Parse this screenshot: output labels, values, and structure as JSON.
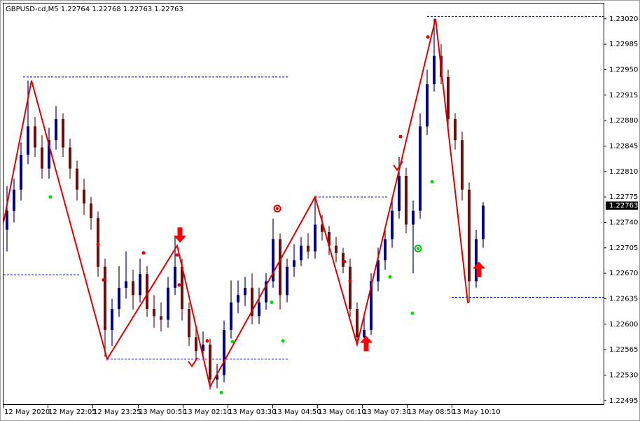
{
  "chart_data": {
    "type": "candlestick",
    "title": "GBPUSD-cd,M5  1.22764 1.22768 1.22763 1.22763",
    "up_color": "#000080",
    "down_color": "#6b0f0f",
    "open": [
      1.2273,
      1.22756,
      1.22785,
      1.22833,
      1.22872,
      1.22843,
      1.22814,
      1.22853,
      1.22882,
      1.22843,
      1.22814,
      1.22785,
      1.22766,
      1.22746,
      1.22679,
      1.22592,
      1.22621,
      1.2265,
      1.22659,
      1.2264,
      1.22669,
      1.22621,
      1.22611,
      1.22606,
      1.2265,
      1.22679,
      1.22621,
      1.22582,
      1.22563,
      1.22572,
      1.22524,
      1.2253,
      1.22592,
      1.2263,
      1.2264,
      1.2265,
      1.22611,
      1.2263,
      1.22659,
      1.22717,
      1.2264,
      1.22679,
      1.22688,
      1.22708,
      1.227,
      1.22737,
      1.22727,
      1.22708,
      1.22698,
      1.22679,
      1.22621,
      1.22582,
      1.22592,
      1.22659,
      1.22688,
      1.22717,
      1.22756,
      1.22804,
      1.22737,
      1.22756,
      1.22872,
      1.2293,
      1.22969,
      1.2294,
      1.22882,
      1.22853,
      1.22785,
      1.22659,
      1.22717
    ],
    "high": [
      1.2279,
      1.228,
      1.2285,
      1.22935,
      1.22885,
      1.2286,
      1.2287,
      1.229,
      1.2289,
      1.22855,
      1.22825,
      1.228,
      1.22775,
      1.22755,
      1.2269,
      1.22635,
      1.2268,
      1.227,
      1.22675,
      1.2269,
      1.2268,
      1.2264,
      1.2263,
      1.22665,
      1.2272,
      1.2269,
      1.2263,
      1.22595,
      1.2259,
      1.2258,
      1.22545,
      1.22605,
      1.2266,
      1.2266,
      1.22665,
      1.2267,
      1.2265,
      1.2267,
      1.22745,
      1.22725,
      1.2269,
      1.2271,
      1.2272,
      1.22725,
      1.22775,
      1.2275,
      1.22735,
      1.2272,
      1.22705,
      1.2269,
      1.2263,
      1.2261,
      1.2267,
      1.22705,
      1.2273,
      1.22775,
      1.2283,
      1.22815,
      1.2277,
      1.2289,
      1.2295,
      1.2302,
      1.22985,
      1.2295,
      1.2289,
      1.22865,
      1.22795,
      1.2273,
      1.22768
    ],
    "low": [
      1.227,
      1.2274,
      1.2277,
      1.2282,
      1.2283,
      1.228,
      1.228,
      1.2284,
      1.2283,
      1.228,
      1.2277,
      1.2275,
      1.2273,
      1.22665,
      1.22555,
      1.2257,
      1.2261,
      1.22635,
      1.2262,
      1.2263,
      1.2261,
      1.22595,
      1.2259,
      1.22595,
      1.2264,
      1.22605,
      1.2257,
      1.2255,
      1.22555,
      1.2251,
      1.22512,
      1.2252,
      1.2258,
      1.22615,
      1.22625,
      1.226,
      1.226,
      1.2262,
      1.2265,
      1.2262,
      1.2263,
      1.22665,
      1.2268,
      1.2269,
      1.2269,
      1.22715,
      1.22695,
      1.22685,
      1.2267,
      1.2261,
      1.22575,
      1.22578,
      1.22585,
      1.22645,
      1.22675,
      1.22705,
      1.22745,
      1.22725,
      1.2267,
      1.22745,
      1.2286,
      1.2292,
      1.2293,
      1.2287,
      1.2284,
      1.2277,
      1.2263,
      1.2265,
      1.22705
    ],
    "close": [
      1.22756,
      1.22785,
      1.22833,
      1.22872,
      1.22843,
      1.22814,
      1.22853,
      1.22882,
      1.22843,
      1.22814,
      1.22785,
      1.22766,
      1.22746,
      1.22679,
      1.22592,
      1.22621,
      1.2265,
      1.22659,
      1.2264,
      1.22669,
      1.22621,
      1.22611,
      1.22606,
      1.2265,
      1.22679,
      1.22621,
      1.22582,
      1.22563,
      1.22572,
      1.22524,
      1.2253,
      1.22592,
      1.2263,
      1.2264,
      1.2265,
      1.22611,
      1.2263,
      1.22659,
      1.22717,
      1.2264,
      1.22679,
      1.22688,
      1.22708,
      1.227,
      1.22737,
      1.22727,
      1.22708,
      1.22698,
      1.22679,
      1.22621,
      1.22582,
      1.22592,
      1.22659,
      1.22688,
      1.22717,
      1.22756,
      1.22804,
      1.22737,
      1.22756,
      1.22872,
      1.2293,
      1.22969,
      1.2294,
      1.22882,
      1.22853,
      1.22785,
      1.22659,
      1.22717,
      1.22763
    ],
    "last_price": {
      "value": 1.22763,
      "label": "1.22763"
    },
    "xlim": [
      -0.5,
      85.2
    ],
    "ylim": [
      1.22489,
      1.23041
    ],
    "xticks": [
      {
        "value": -0.5,
        "label": "12 May 2020"
      },
      {
        "value": 5.8,
        "label": "12 May 22:05"
      },
      {
        "value": 12.2,
        "label": "12 May 23:25"
      },
      {
        "value": 18.7,
        "label": "13 May 00:50"
      },
      {
        "value": 25.1,
        "label": "13 May 02:10"
      },
      {
        "value": 31.5,
        "label": "13 May 03:30"
      },
      {
        "value": 37.9,
        "label": "13 May 04:50"
      },
      {
        "value": 44.3,
        "label": "13 May 06:10"
      },
      {
        "value": 50.7,
        "label": "13 May 07:30"
      },
      {
        "value": 57.1,
        "label": "13 May 08:50"
      },
      {
        "value": 63.5,
        "label": "13 May 10:10"
      }
    ],
    "yticks": [
      {
        "value": 1.2302,
        "label": "1.23020"
      },
      {
        "value": 1.22985,
        "label": "1.22985"
      },
      {
        "value": 1.2295,
        "label": "1.22950"
      },
      {
        "value": 1.22915,
        "label": "1.22915"
      },
      {
        "value": 1.2288,
        "label": "1.22880"
      },
      {
        "value": 1.22845,
        "label": "1.22845"
      },
      {
        "value": 1.2281,
        "label": "1.22810"
      },
      {
        "value": 1.22775,
        "label": "1.22775"
      },
      {
        "value": 1.2274,
        "label": "1.22740"
      },
      {
        "value": 1.22705,
        "label": "1.22705"
      },
      {
        "value": 1.2267,
        "label": "1.22670"
      },
      {
        "value": 1.22635,
        "label": "1.22635"
      },
      {
        "value": 1.226,
        "label": "1.22600"
      },
      {
        "value": 1.22565,
        "label": "1.22565"
      },
      {
        "value": 1.2253,
        "label": "1.22530"
      },
      {
        "value": 1.22495,
        "label": "1.22495"
      }
    ],
    "zigzag": {
      "color": "#e00000",
      "x": [
        -0.5,
        3.5,
        14.3,
        24.3,
        29,
        44,
        50,
        61.2,
        65.8,
        66
      ],
      "values": [
        1.2274,
        1.22935,
        1.22552,
        1.22708,
        1.22514,
        1.22775,
        1.22572,
        1.2302,
        1.2263,
        1.2263
      ]
    },
    "levels": {
      "color": "#0000cc",
      "values": [
        1.2294,
        1.22668,
        1.22552,
        1.22775,
        1.23023,
        1.22637
      ],
      "from": [
        2.3,
        -0.5,
        14.3,
        44,
        60,
        63.5
      ],
      "to": [
        40.3,
        10.5,
        40.3,
        54.5,
        85.2,
        85.2
      ]
    },
    "red_dots": {
      "color": "#e00000",
      "x": [
        13,
        13.8,
        19.5,
        24.3,
        24.6,
        28.6,
        48.2,
        49,
        56.2,
        60.1
      ],
      "values": [
        1.2271,
        1.22661,
        1.22698,
        1.22695,
        1.22654,
        1.22577,
        1.22686,
        1.22659,
        1.22858,
        1.22995
      ]
    },
    "green_dots": {
      "color": "#00e000",
      "x": [
        6.2,
        30.6,
        32.2,
        37.8,
        39.4,
        54.7,
        57.9,
        60.7
      ],
      "values": [
        1.22775,
        1.22506,
        1.22576,
        1.2263,
        1.22577,
        1.22665,
        1.22615,
        1.22796
      ]
    },
    "rings": {
      "colors": [
        "#e00000",
        "#00c000"
      ],
      "x": [
        38.6,
        58.7
      ],
      "values": [
        1.22759,
        1.22704
      ]
    },
    "checks": {
      "color": "#e00000",
      "x": [
        55.8,
        26.5
      ],
      "values": [
        1.22816,
        1.22546
      ]
    },
    "arrows": {
      "color": "#ff0000",
      "directions": [
        "down",
        "up",
        "up"
      ],
      "x": [
        24.7,
        51.3,
        67.4
      ],
      "values": [
        1.22712,
        1.22584,
        1.22686
      ]
    }
  }
}
